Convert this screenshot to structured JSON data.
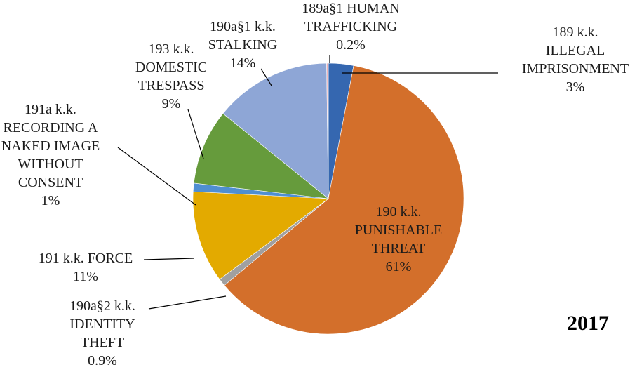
{
  "chart_data": {
    "type": "pie",
    "year_label": "2017",
    "slices": [
      {
        "lines": [
          "189 k.k.",
          "ILLEGAL",
          "IMPRISONMENT",
          "3%"
        ],
        "value": 3,
        "color": "#3567b0"
      },
      {
        "lines": [
          "190 k.k.",
          "PUNISHABLE",
          "THREAT",
          "61%"
        ],
        "value": 61,
        "color": "#d36f2b"
      },
      {
        "lines": [
          "190a§2 k.k.",
          "IDENTITY",
          "THEFT",
          "0.9%"
        ],
        "value": 0.9,
        "color": "#a0a0a0"
      },
      {
        "lines": [
          "191 k.k. FORCE",
          "11%"
        ],
        "value": 11,
        "color": "#e3aa00"
      },
      {
        "lines": [
          "191a k.k.",
          "RECORDING A",
          "NAKED IMAGE",
          "WITHOUT",
          "CONSENT",
          "1%"
        ],
        "value": 1,
        "color": "#4f8fd1"
      },
      {
        "lines": [
          "193 k.k.",
          "DOMESTIC",
          "TRESPASS",
          "9%"
        ],
        "value": 9,
        "color": "#669b3c"
      },
      {
        "lines": [
          "190a§1 k.k.",
          "STALKING",
          "14%"
        ],
        "value": 14,
        "color": "#8ea6d6"
      },
      {
        "lines": [
          "189a§1 HUMAN",
          "TRAFFICKING",
          "0.2%"
        ],
        "value": 0.2,
        "color": "#f2b3b7"
      }
    ]
  }
}
